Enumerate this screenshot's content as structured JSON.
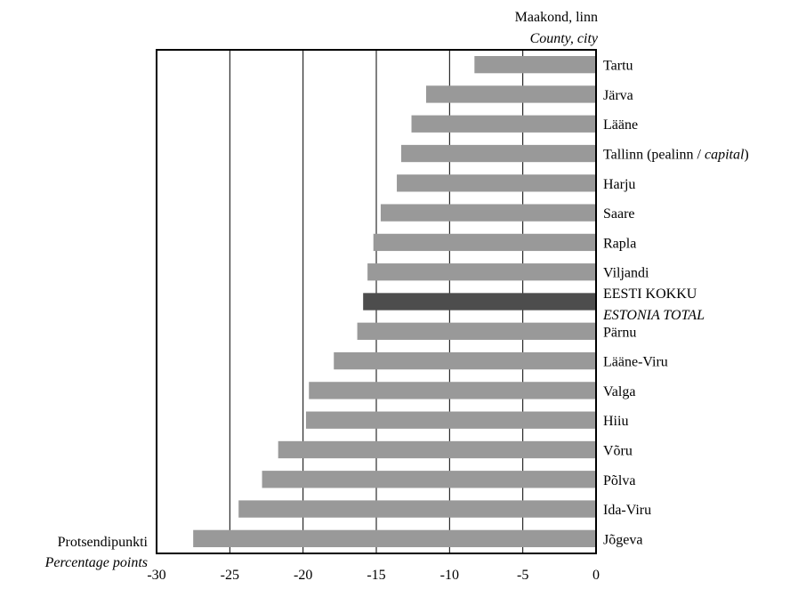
{
  "chart_data": {
    "type": "bar",
    "orientation": "horizontal",
    "title_line1": "Maakond, linn",
    "title_line2": "County, city",
    "xlabel_line1": "Protsendipunkti",
    "xlabel_line2": "Percentage points",
    "xlim": [
      -30,
      0
    ],
    "xticks": [
      -30,
      -25,
      -20,
      -15,
      -10,
      -5,
      0
    ],
    "grid": "vertical",
    "colors": {
      "default": "#999999",
      "highlight": "#4d4d4d"
    },
    "categories": [
      {
        "label": "Tartu",
        "value": -8.3
      },
      {
        "label": "Järva",
        "value": -11.6
      },
      {
        "label": "Lääne",
        "value": -12.6
      },
      {
        "label": "Tallinn (pealinn / ",
        "label_italic": "capital",
        "label_end": ")",
        "value": -13.3
      },
      {
        "label": "Harju",
        "value": -13.6
      },
      {
        "label": "Saare",
        "value": -14.7
      },
      {
        "label": "Rapla",
        "value": -15.2
      },
      {
        "label": "Viljandi",
        "value": -15.6
      },
      {
        "label": "EESTI KOKKU",
        "label_line2": "ESTONIA TOTAL",
        "value": -15.9,
        "highlight": true
      },
      {
        "label": "Pärnu",
        "value": -16.3
      },
      {
        "label": "Lääne-Viru",
        "value": -17.9
      },
      {
        "label": "Valga",
        "value": -19.6
      },
      {
        "label": "Hiiu",
        "value": -19.8
      },
      {
        "label": "Võru",
        "value": -21.7
      },
      {
        "label": "Põlva",
        "value": -22.8
      },
      {
        "label": "Ida-Viru",
        "value": -24.4
      },
      {
        "label": "Jõgeva",
        "value": -27.5
      }
    ]
  }
}
